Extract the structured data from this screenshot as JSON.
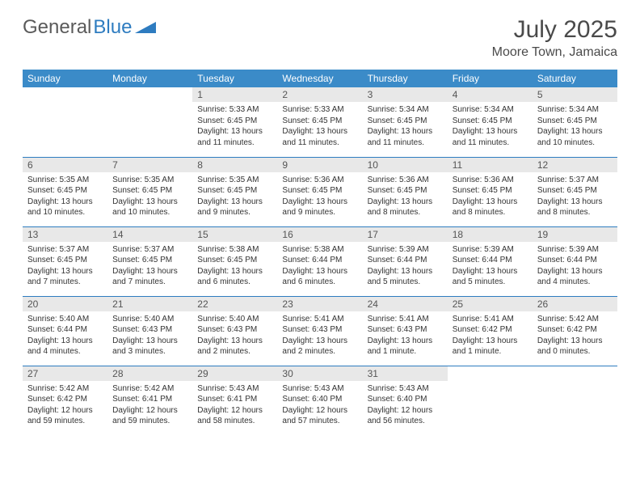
{
  "brand": {
    "part1": "General",
    "part2": "Blue"
  },
  "title": "July 2025",
  "location": "Moore Town, Jamaica",
  "colors": {
    "header_bg": "#3b8bc8",
    "header_text": "#ffffff",
    "daynum_bg": "#e8e8e8",
    "week_border": "#2e7cc0",
    "text": "#333333",
    "title_text": "#4a4a4a",
    "logo_grey": "#5a5a5a",
    "logo_blue": "#2e7cc0"
  },
  "typography": {
    "title_fontsize": 30,
    "location_fontsize": 16,
    "header_fontsize": 12,
    "daynum_fontsize": 12,
    "cell_fontsize": 10
  },
  "weekdays": [
    "Sunday",
    "Monday",
    "Tuesday",
    "Wednesday",
    "Thursday",
    "Friday",
    "Saturday"
  ],
  "weeks": [
    [
      null,
      null,
      {
        "n": "1",
        "sr": "Sunrise: 5:33 AM",
        "ss": "Sunset: 6:45 PM",
        "dl": "Daylight: 13 hours and 11 minutes."
      },
      {
        "n": "2",
        "sr": "Sunrise: 5:33 AM",
        "ss": "Sunset: 6:45 PM",
        "dl": "Daylight: 13 hours and 11 minutes."
      },
      {
        "n": "3",
        "sr": "Sunrise: 5:34 AM",
        "ss": "Sunset: 6:45 PM",
        "dl": "Daylight: 13 hours and 11 minutes."
      },
      {
        "n": "4",
        "sr": "Sunrise: 5:34 AM",
        "ss": "Sunset: 6:45 PM",
        "dl": "Daylight: 13 hours and 11 minutes."
      },
      {
        "n": "5",
        "sr": "Sunrise: 5:34 AM",
        "ss": "Sunset: 6:45 PM",
        "dl": "Daylight: 13 hours and 10 minutes."
      }
    ],
    [
      {
        "n": "6",
        "sr": "Sunrise: 5:35 AM",
        "ss": "Sunset: 6:45 PM",
        "dl": "Daylight: 13 hours and 10 minutes."
      },
      {
        "n": "7",
        "sr": "Sunrise: 5:35 AM",
        "ss": "Sunset: 6:45 PM",
        "dl": "Daylight: 13 hours and 10 minutes."
      },
      {
        "n": "8",
        "sr": "Sunrise: 5:35 AM",
        "ss": "Sunset: 6:45 PM",
        "dl": "Daylight: 13 hours and 9 minutes."
      },
      {
        "n": "9",
        "sr": "Sunrise: 5:36 AM",
        "ss": "Sunset: 6:45 PM",
        "dl": "Daylight: 13 hours and 9 minutes."
      },
      {
        "n": "10",
        "sr": "Sunrise: 5:36 AM",
        "ss": "Sunset: 6:45 PM",
        "dl": "Daylight: 13 hours and 8 minutes."
      },
      {
        "n": "11",
        "sr": "Sunrise: 5:36 AM",
        "ss": "Sunset: 6:45 PM",
        "dl": "Daylight: 13 hours and 8 minutes."
      },
      {
        "n": "12",
        "sr": "Sunrise: 5:37 AM",
        "ss": "Sunset: 6:45 PM",
        "dl": "Daylight: 13 hours and 8 minutes."
      }
    ],
    [
      {
        "n": "13",
        "sr": "Sunrise: 5:37 AM",
        "ss": "Sunset: 6:45 PM",
        "dl": "Daylight: 13 hours and 7 minutes."
      },
      {
        "n": "14",
        "sr": "Sunrise: 5:37 AM",
        "ss": "Sunset: 6:45 PM",
        "dl": "Daylight: 13 hours and 7 minutes."
      },
      {
        "n": "15",
        "sr": "Sunrise: 5:38 AM",
        "ss": "Sunset: 6:45 PM",
        "dl": "Daylight: 13 hours and 6 minutes."
      },
      {
        "n": "16",
        "sr": "Sunrise: 5:38 AM",
        "ss": "Sunset: 6:44 PM",
        "dl": "Daylight: 13 hours and 6 minutes."
      },
      {
        "n": "17",
        "sr": "Sunrise: 5:39 AM",
        "ss": "Sunset: 6:44 PM",
        "dl": "Daylight: 13 hours and 5 minutes."
      },
      {
        "n": "18",
        "sr": "Sunrise: 5:39 AM",
        "ss": "Sunset: 6:44 PM",
        "dl": "Daylight: 13 hours and 5 minutes."
      },
      {
        "n": "19",
        "sr": "Sunrise: 5:39 AM",
        "ss": "Sunset: 6:44 PM",
        "dl": "Daylight: 13 hours and 4 minutes."
      }
    ],
    [
      {
        "n": "20",
        "sr": "Sunrise: 5:40 AM",
        "ss": "Sunset: 6:44 PM",
        "dl": "Daylight: 13 hours and 4 minutes."
      },
      {
        "n": "21",
        "sr": "Sunrise: 5:40 AM",
        "ss": "Sunset: 6:43 PM",
        "dl": "Daylight: 13 hours and 3 minutes."
      },
      {
        "n": "22",
        "sr": "Sunrise: 5:40 AM",
        "ss": "Sunset: 6:43 PM",
        "dl": "Daylight: 13 hours and 2 minutes."
      },
      {
        "n": "23",
        "sr": "Sunrise: 5:41 AM",
        "ss": "Sunset: 6:43 PM",
        "dl": "Daylight: 13 hours and 2 minutes."
      },
      {
        "n": "24",
        "sr": "Sunrise: 5:41 AM",
        "ss": "Sunset: 6:43 PM",
        "dl": "Daylight: 13 hours and 1 minute."
      },
      {
        "n": "25",
        "sr": "Sunrise: 5:41 AM",
        "ss": "Sunset: 6:42 PM",
        "dl": "Daylight: 13 hours and 1 minute."
      },
      {
        "n": "26",
        "sr": "Sunrise: 5:42 AM",
        "ss": "Sunset: 6:42 PM",
        "dl": "Daylight: 13 hours and 0 minutes."
      }
    ],
    [
      {
        "n": "27",
        "sr": "Sunrise: 5:42 AM",
        "ss": "Sunset: 6:42 PM",
        "dl": "Daylight: 12 hours and 59 minutes."
      },
      {
        "n": "28",
        "sr": "Sunrise: 5:42 AM",
        "ss": "Sunset: 6:41 PM",
        "dl": "Daylight: 12 hours and 59 minutes."
      },
      {
        "n": "29",
        "sr": "Sunrise: 5:43 AM",
        "ss": "Sunset: 6:41 PM",
        "dl": "Daylight: 12 hours and 58 minutes."
      },
      {
        "n": "30",
        "sr": "Sunrise: 5:43 AM",
        "ss": "Sunset: 6:40 PM",
        "dl": "Daylight: 12 hours and 57 minutes."
      },
      {
        "n": "31",
        "sr": "Sunrise: 5:43 AM",
        "ss": "Sunset: 6:40 PM",
        "dl": "Daylight: 12 hours and 56 minutes."
      },
      null,
      null
    ]
  ]
}
